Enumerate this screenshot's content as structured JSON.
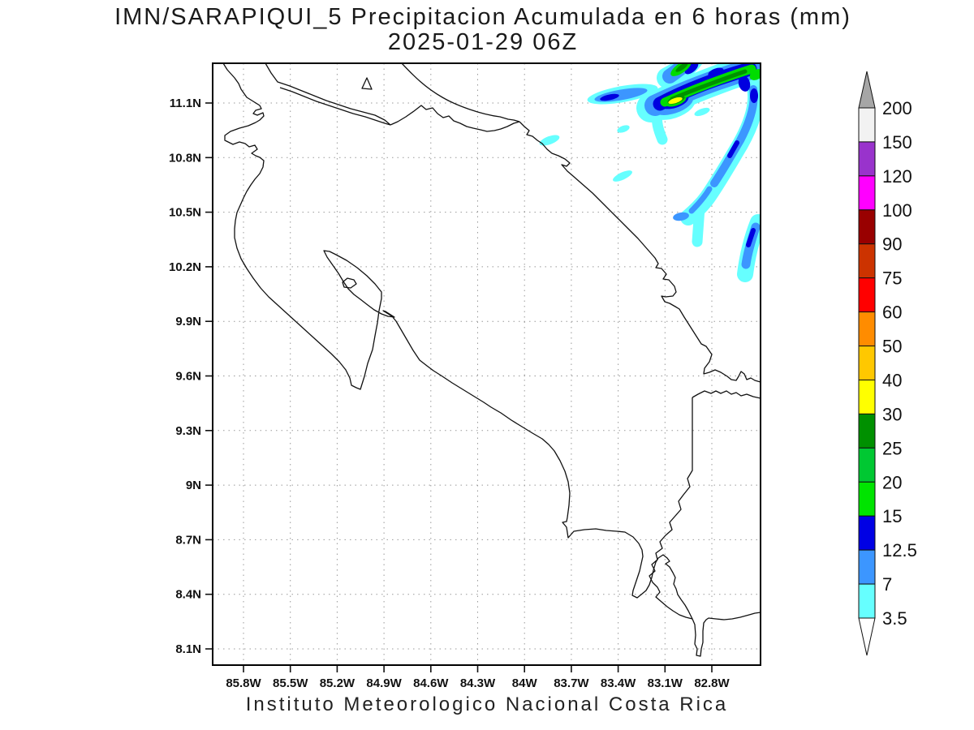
{
  "title": {
    "line1": "IMN/SARAPIQUI_5 Precipitacion Acumulada en 6 horas (mm)",
    "line2": "2025-01-29 06Z"
  },
  "caption": "Instituto Meteorologico Nacional Costa Rica",
  "axes": {
    "lat_labels": [
      "11.1N",
      "10.8N",
      "10.5N",
      "10.2N",
      "9.9N",
      "9.6N",
      "9.3N",
      "9N",
      "8.7N",
      "8.4N",
      "8.1N"
    ],
    "lon_labels": [
      "85.8W",
      "85.5W",
      "85.2W",
      "84.9W",
      "84.6W",
      "84.3W",
      "84W",
      "83.7W",
      "83.4W",
      "83.1W",
      "82.8W"
    ]
  },
  "colorbar": {
    "levels": [
      "200",
      "150",
      "120",
      "100",
      "90",
      "75",
      "60",
      "50",
      "40",
      "30",
      "25",
      "20",
      "15",
      "12.5",
      "7",
      "3.5"
    ],
    "segment_colors": [
      "#f2f2f2",
      "#9933cc",
      "#ff00ff",
      "#990000",
      "#cc3300",
      "#ff0000",
      "#ff8c00",
      "#ffc800",
      "#ffff00",
      "#009000",
      "#00c832",
      "#00e400",
      "#0000e4",
      "#3c96ff",
      "#66ffff"
    ],
    "above_max_color": "#a6a6a6",
    "below_min_color": "#ffffff"
  },
  "map": {
    "coast_color": "#111111",
    "grid_color": "#999999",
    "frame_color": "#000000",
    "palette": {
      "cyan": "#66ffff",
      "blue": "#3c96ff",
      "darkblue": "#0000e0",
      "green": "#00dc00",
      "darkgreen": "#009000",
      "yellow": "#ffff00"
    }
  }
}
